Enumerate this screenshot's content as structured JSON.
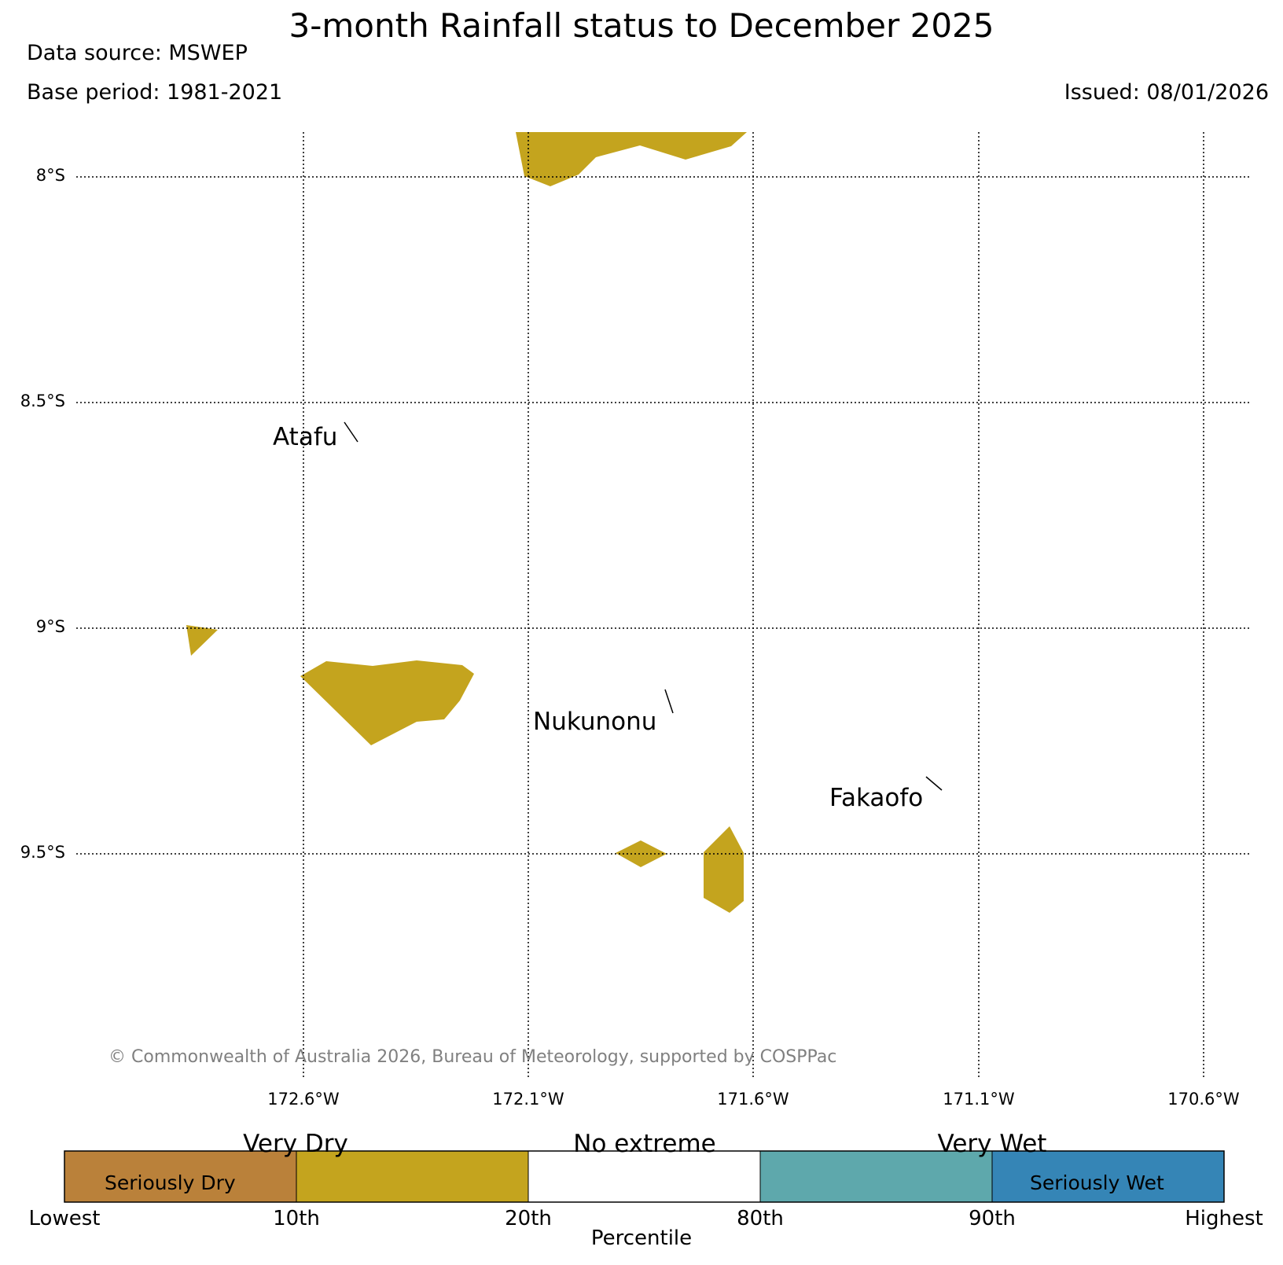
{
  "header": {
    "title": "3-month Rainfall status to December 2025",
    "data_source": "Data source: MSWEP",
    "base_period": "Base period: 1981-2021",
    "issued": "Issued: 08/01/2026"
  },
  "map": {
    "lat_labels": [
      "8°S",
      "8.5°S",
      "9°S",
      "9.5°S"
    ],
    "lon_labels": [
      "172.6°W",
      "172.1°W",
      "171.6°W",
      "171.1°W",
      "170.6°W"
    ],
    "places": [
      "Atafu",
      "Nukunonu",
      "Fakaofo"
    ],
    "copyright": "© Commonwealth of Australia 2026, Bureau of Meteorology, supported by COSPPac",
    "fill_colors": {
      "very_dry": "#c4a41e"
    }
  },
  "legend": {
    "categories": [
      {
        "name": "Seriously Dry",
        "color": "#ba813a"
      },
      {
        "name": "Very Dry",
        "color": "#c4a41e"
      },
      {
        "name": "No extreme",
        "color": "#ffffff"
      },
      {
        "name": "Very Wet",
        "color": "#5ea8ac"
      },
      {
        "name": "Seriously Wet",
        "color": "#3585b6"
      }
    ],
    "top_labels": [
      "Very Dry",
      "No extreme",
      "Very Wet"
    ],
    "inner_labels": [
      "Seriously Dry",
      "Seriously Wet"
    ],
    "ticks": [
      "Lowest",
      "10th",
      "20th",
      "80th",
      "90th",
      "Highest"
    ],
    "axis_label": "Percentile"
  }
}
